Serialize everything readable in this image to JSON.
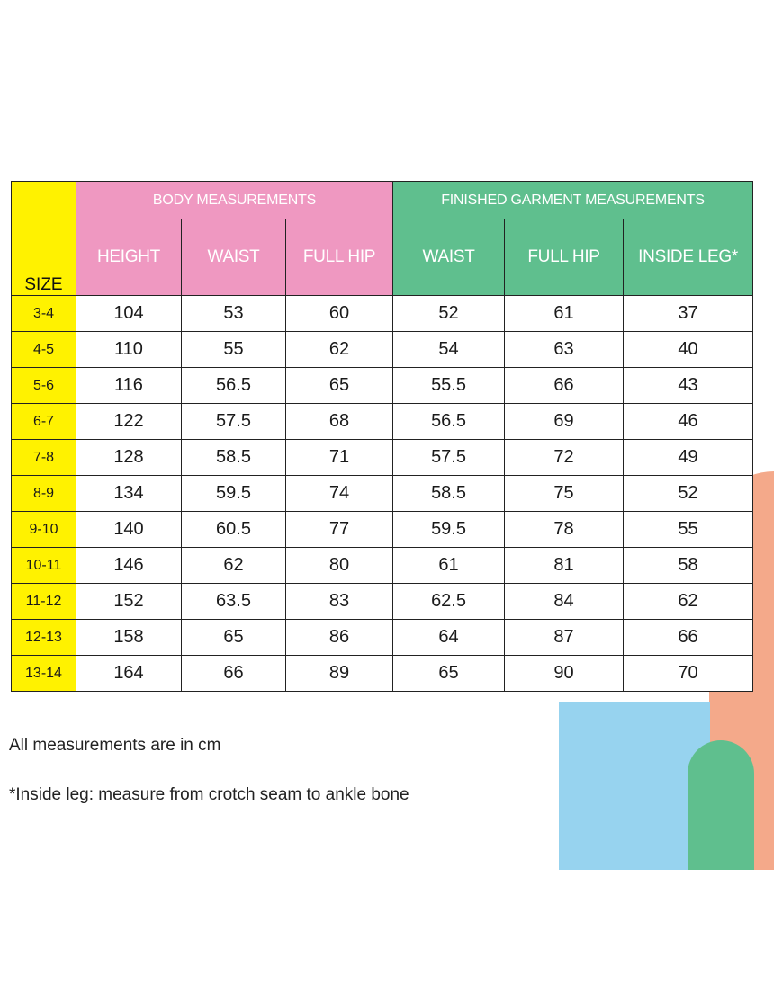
{
  "table": {
    "size_header": "SIZE",
    "group_headers": {
      "body": "BODY MEASUREMENTS",
      "garment": "FINISHED GARMENT MEASUREMENTS"
    },
    "columns": [
      "HEIGHT",
      "WAIST",
      "FULL HIP",
      "WAIST",
      "FULL HIP",
      "INSIDE LEG*"
    ],
    "rows": [
      {
        "size": "3-4",
        "values": [
          "104",
          "53",
          "60",
          "52",
          "61",
          "37"
        ]
      },
      {
        "size": "4-5",
        "values": [
          "110",
          "55",
          "62",
          "54",
          "63",
          "40"
        ]
      },
      {
        "size": "5-6",
        "values": [
          "116",
          "56.5",
          "65",
          "55.5",
          "66",
          "43"
        ]
      },
      {
        "size": "6-7",
        "values": [
          "122",
          "57.5",
          "68",
          "56.5",
          "69",
          "46"
        ]
      },
      {
        "size": "7-8",
        "values": [
          "128",
          "58.5",
          "71",
          "57.5",
          "72",
          "49"
        ]
      },
      {
        "size": "8-9",
        "values": [
          "134",
          "59.5",
          "74",
          "58.5",
          "75",
          "52"
        ]
      },
      {
        "size": "9-10",
        "values": [
          "140",
          "60.5",
          "77",
          "59.5",
          "78",
          "55"
        ]
      },
      {
        "size": "10-11",
        "values": [
          "146",
          "62",
          "80",
          "61",
          "81",
          "58"
        ]
      },
      {
        "size": "11-12",
        "values": [
          "152",
          "63.5",
          "83",
          "62.5",
          "84",
          "62"
        ]
      },
      {
        "size": "12-13",
        "values": [
          "158",
          "65",
          "86",
          "64",
          "87",
          "66"
        ]
      },
      {
        "size": "13-14",
        "values": [
          "164",
          "66",
          "89",
          "65",
          "90",
          "70"
        ]
      }
    ]
  },
  "notes": {
    "units": "All measurements are in cm",
    "inside_leg": "*Inside leg: measure from crotch seam to ankle bone"
  },
  "colors": {
    "size_yellow": "#fff200",
    "body_pink": "#ef98c1",
    "garment_green": "#5fbf8e",
    "deco_blue": "#97d3ef",
    "deco_peach": "#f4a98a"
  }
}
